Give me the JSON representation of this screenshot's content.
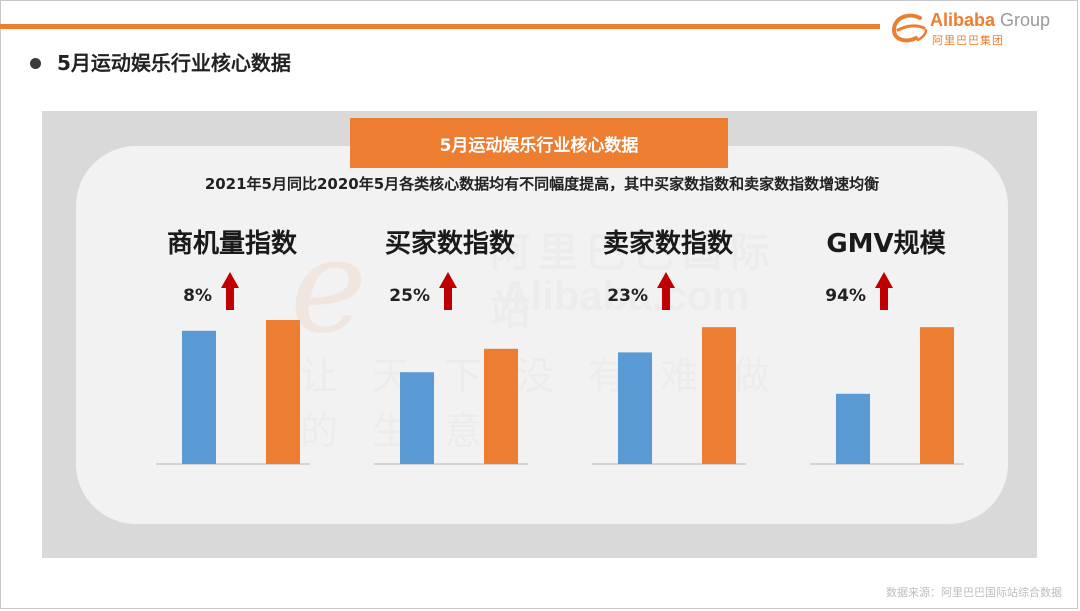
{
  "header": {
    "title": "5月运动娱乐行业核心数据",
    "logo": {
      "en_main": "Alibaba",
      "en_sub": " Group",
      "cn": "阿里巴巴集团"
    }
  },
  "banner": "5月运动娱乐行业核心数据",
  "subtitle": "2021年5月同比2020年5月各类核心数据均有不同幅度提高，其中买家数指数和卖家数指数增速均衡",
  "watermark": {
    "line1": "阿里巴巴国际站",
    "line2": "Alibaba.com",
    "line3": "让天下没有难做的生意"
  },
  "source": "数据来源：阿里巴巴国际站综合数据",
  "colors": {
    "accent": "#ed7d31",
    "blue": "#5b9bd5",
    "arrow": "#c00000"
  },
  "chart_data": [
    {
      "type": "bar",
      "title": "商机量指数",
      "growth": "8%",
      "series": [
        {
          "values": [
            0.74
          ]
        },
        {
          "values": [
            0.8
          ]
        }
      ]
    },
    {
      "type": "bar",
      "title": "买家数指数",
      "growth": "25%",
      "series": [
        {
          "values": [
            0.51
          ]
        },
        {
          "values": [
            0.64
          ]
        }
      ]
    },
    {
      "type": "bar",
      "title": "卖家数指数",
      "growth": "23%",
      "series": [
        {
          "values": [
            0.62
          ]
        },
        {
          "values": [
            0.76
          ]
        }
      ]
    },
    {
      "type": "bar",
      "title": "GMV规模",
      "growth": "94%",
      "series": [
        {
          "values": [
            0.39
          ]
        },
        {
          "values": [
            0.76
          ]
        }
      ]
    }
  ]
}
